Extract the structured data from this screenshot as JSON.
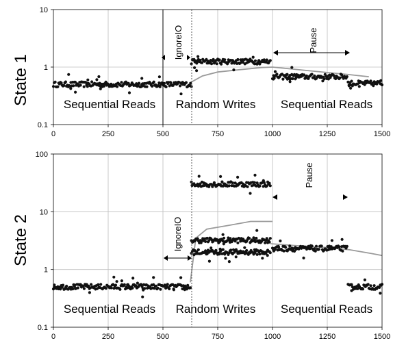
{
  "chart_data": [
    {
      "type": "scatter",
      "ylabel": "State 1",
      "yscale": "log",
      "xlim": [
        0,
        1500
      ],
      "ylim": [
        0.1,
        10
      ],
      "xticks": [
        "0",
        "250",
        "500",
        "750",
        "1000",
        "1250",
        "1500"
      ],
      "yticks": [
        "0.1",
        "1",
        "10"
      ],
      "grid": true,
      "phase_labels": [
        "Sequential Reads",
        "Random Writes",
        "Sequential Reads"
      ],
      "annotations": {
        "ignore_label": "IgnoreIO",
        "pause_label": "Pause"
      },
      "series": [
        {
          "values": [
            {
              "x": 0,
              "y": 0.5
            },
            {
              "x": 630,
              "y": 0.5
            },
            {
              "x": 630,
              "y": 1.25
            },
            {
              "x": 990,
              "y": 1.25
            },
            {
              "x": 1000,
              "y": 0.68
            },
            {
              "x": 1340,
              "y": 0.68
            },
            {
              "x": 1345,
              "y": 0.52
            },
            {
              "x": 1500,
              "y": 0.52
            }
          ]
        },
        {
          "values": [
            {
              "x": 630,
              "y": 0.55
            },
            {
              "x": 680,
              "y": 0.7
            },
            {
              "x": 750,
              "y": 0.82
            },
            {
              "x": 850,
              "y": 0.9
            },
            {
              "x": 950,
              "y": 0.98
            },
            {
              "x": 1000,
              "y": 1.0
            },
            {
              "x": 1200,
              "y": 0.84
            },
            {
              "x": 1350,
              "y": 0.74
            },
            {
              "x": 1440,
              "y": 0.68
            }
          ]
        }
      ]
    },
    {
      "type": "scatter",
      "ylabel": "State 2",
      "yscale": "log",
      "xlim": [
        0,
        1500
      ],
      "ylim": [
        0.1,
        100
      ],
      "xticks": [
        "0",
        "250",
        "500",
        "750",
        "1000",
        "1250",
        "1500"
      ],
      "yticks": [
        "0.1",
        "1",
        "10",
        "100"
      ],
      "grid": true,
      "phase_labels": [
        "Sequential Reads",
        "Random Writes",
        "Sequential Reads"
      ],
      "annotations": {
        "ignore_label": "IgnoreIO",
        "pause_label": "Pause"
      },
      "series": [
        {
          "values": [
            {
              "x": 0,
              "y": 0.5
            },
            {
              "x": 625,
              "y": 0.5
            },
            {
              "x": 630,
              "y": 30
            },
            {
              "x": 990,
              "y": 30
            },
            {
              "x": 630,
              "y": 3.2
            },
            {
              "x": 990,
              "y": 3.2
            },
            {
              "x": 630,
              "y": 2.0
            },
            {
              "x": 990,
              "y": 2.0
            },
            {
              "x": 1000,
              "y": 2.3
            },
            {
              "x": 1340,
              "y": 2.3
            },
            {
              "x": 1345,
              "y": 0.5
            },
            {
              "x": 1500,
              "y": 0.5
            }
          ]
        },
        {
          "values": [
            {
              "x": 625,
              "y": 0.6
            },
            {
              "x": 650,
              "y": 3.5
            },
            {
              "x": 700,
              "y": 5.0
            },
            {
              "x": 800,
              "y": 5.8
            },
            {
              "x": 900,
              "y": 6.8
            },
            {
              "x": 1000,
              "y": 6.8
            }
          ]
        },
        {
          "values": [
            {
              "x": 990,
              "y": 2.8
            },
            {
              "x": 1100,
              "y": 2.6
            },
            {
              "x": 1250,
              "y": 2.4
            },
            {
              "x": 1350,
              "y": 2.2
            },
            {
              "x": 1450,
              "y": 1.9
            },
            {
              "x": 1500,
              "y": 1.75
            }
          ]
        }
      ]
    }
  ]
}
